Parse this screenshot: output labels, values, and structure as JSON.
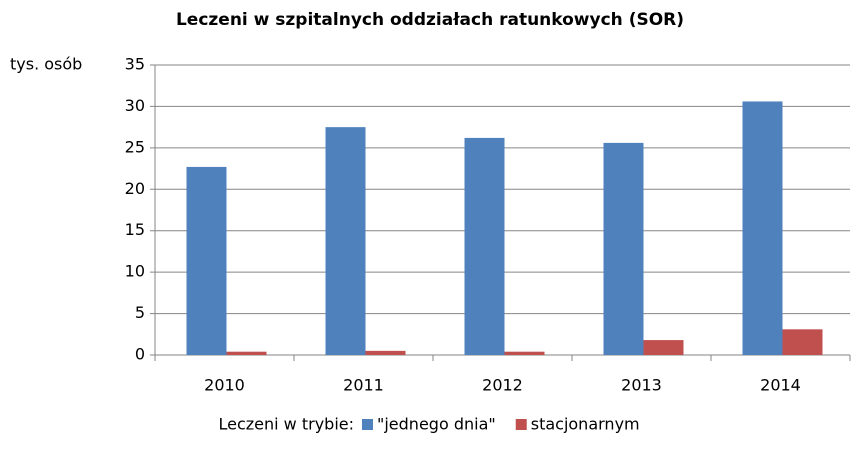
{
  "chart_data": {
    "type": "bar",
    "title": "Leczeni w szpitalnych oddziałach ratunkowych (SOR)",
    "y_label": "tys. osób",
    "legend_title": "Leczeni w trybie:",
    "categories": [
      "2010",
      "2011",
      "2012",
      "2013",
      "2014"
    ],
    "series": [
      {
        "name": "\"jednego dnia\"",
        "color": "#4f81bd",
        "values": [
          22.7,
          27.5,
          26.2,
          25.6,
          30.6
        ]
      },
      {
        "name": "stacjonarnym",
        "color": "#c0504d",
        "values": [
          0.4,
          0.5,
          0.4,
          1.8,
          3.1
        ]
      }
    ],
    "ylim": [
      0,
      35
    ],
    "yticks": [
      0,
      5,
      10,
      15,
      20,
      25,
      30,
      35
    ],
    "grid": true,
    "legend": "bottom"
  }
}
